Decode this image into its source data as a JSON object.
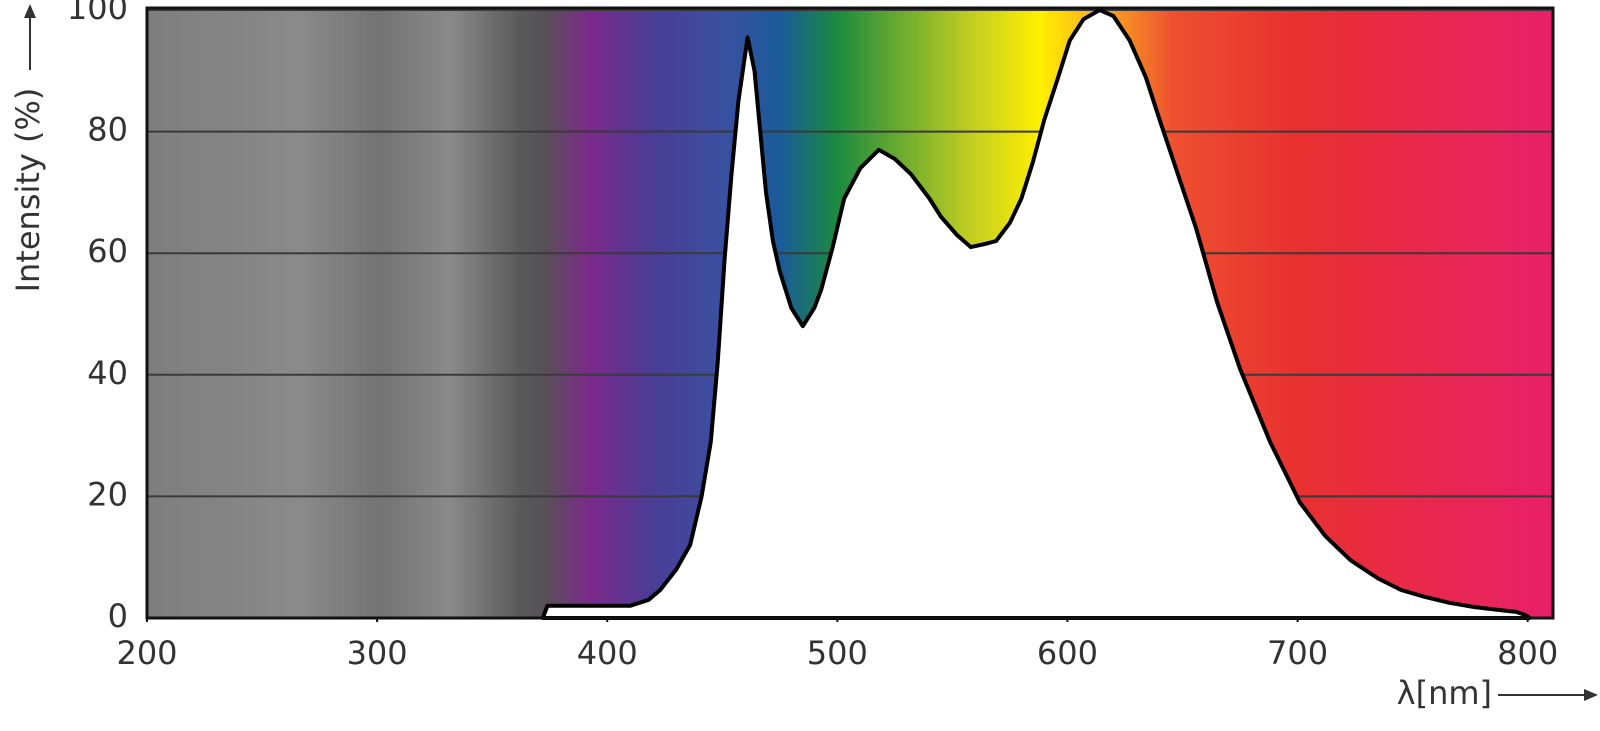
{
  "chart_data": {
    "type": "area",
    "xlabel": "λ[nm]",
    "ylabel": "Intensity (%)",
    "x": [
      372,
      374,
      390,
      410,
      418,
      423,
      430,
      436,
      441,
      445,
      448,
      451,
      454,
      457,
      461,
      464,
      467,
      469,
      472,
      475,
      480,
      485,
      490,
      493,
      498,
      503,
      510,
      518,
      525,
      532,
      540,
      545,
      552,
      558,
      564,
      569,
      575,
      580,
      585,
      590,
      596,
      601,
      607,
      614,
      620,
      627,
      634,
      640,
      648,
      656,
      665,
      675,
      688,
      701,
      712,
      723,
      735,
      745,
      755,
      766,
      777,
      788,
      795,
      799,
      801
    ],
    "values": [
      0,
      2,
      2,
      2,
      3,
      4.6,
      8,
      12,
      20,
      29,
      42,
      59,
      73,
      85,
      95.5,
      90,
      78,
      70,
      62,
      57,
      51,
      48,
      51,
      54,
      61,
      69,
      74,
      77,
      75.5,
      73,
      69,
      66,
      63,
      61,
      61.5,
      62,
      65,
      69,
      75,
      82,
      89,
      95,
      98.5,
      100,
      99,
      95,
      89,
      82,
      73,
      64,
      52,
      41,
      29,
      19,
      13.5,
      9.5,
      6.5,
      4.6,
      3.5,
      2.5,
      1.8,
      1.3,
      1,
      0.5,
      0
    ],
    "color": "#ffffff",
    "line_color": "#000000",
    "xlim": [
      200,
      811
    ],
    "xticks": [
      200,
      300,
      400,
      500,
      600,
      700,
      800
    ],
    "ylim": [
      0,
      100
    ],
    "yticks": [
      0,
      20,
      40,
      60,
      80,
      100
    ],
    "grid": true
  }
}
